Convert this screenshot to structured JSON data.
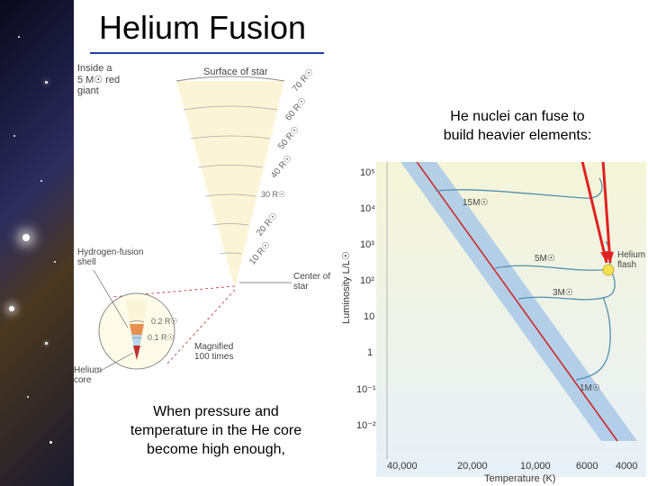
{
  "title": "Helium Fusion",
  "top_text": "He nuclei can fuse to\nbuild heavier elements:",
  "bottom_text": "When pressure and\ntemperature in the He core\nbecome high enough,",
  "wedge": {
    "header_left": "Inside a\n5 M☉ red giant",
    "header_right": "Surface of star",
    "shells_label": "Hydrogen-fusion\nshell",
    "core_label": "Helium core",
    "center_label": "Center of star",
    "magnified": "Magnified\n100 times",
    "arcs": [
      "70 R☉",
      "60 R☉",
      "50 R☉",
      "40 R☉",
      "30 R☉",
      "20 R☉",
      "10 R☉"
    ],
    "inset_radii": [
      "0.2 R☉",
      "0.1 R☉"
    ],
    "wedge_fill": "#fcf4d6",
    "shell_color": "#e89050",
    "core_color": "#c03030",
    "inset_bg": "#fefce8"
  },
  "hr": {
    "yticks": [
      "10⁵",
      "10⁴",
      "10³",
      "10²",
      "10",
      "1",
      "10⁻¹",
      "10⁻²"
    ],
    "ylabel": "Luminosity L/L☉",
    "xticks": [
      "40,000",
      "20,000",
      "10,000",
      "6000",
      "4000"
    ],
    "xlabel": "Temperature (K)",
    "tracks": [
      "15M☉",
      "5M☉",
      "3M☉",
      "1M☉"
    ],
    "flash_label": "Helium flash",
    "ms_band_color": "#a8c8e8",
    "track_color": "#5090b0",
    "zams_color": "#d02020",
    "flash_color": "#f5e050",
    "arrow_color": "#e02020",
    "bg_top": "#f8f6d8",
    "bg_bottom": "#e6eef6"
  },
  "nebula": {
    "bg": "linear-gradient(135deg,#0a0a1a,#1a1a3e,#2d2d5f,#4a3820,#1a1a2e)"
  }
}
